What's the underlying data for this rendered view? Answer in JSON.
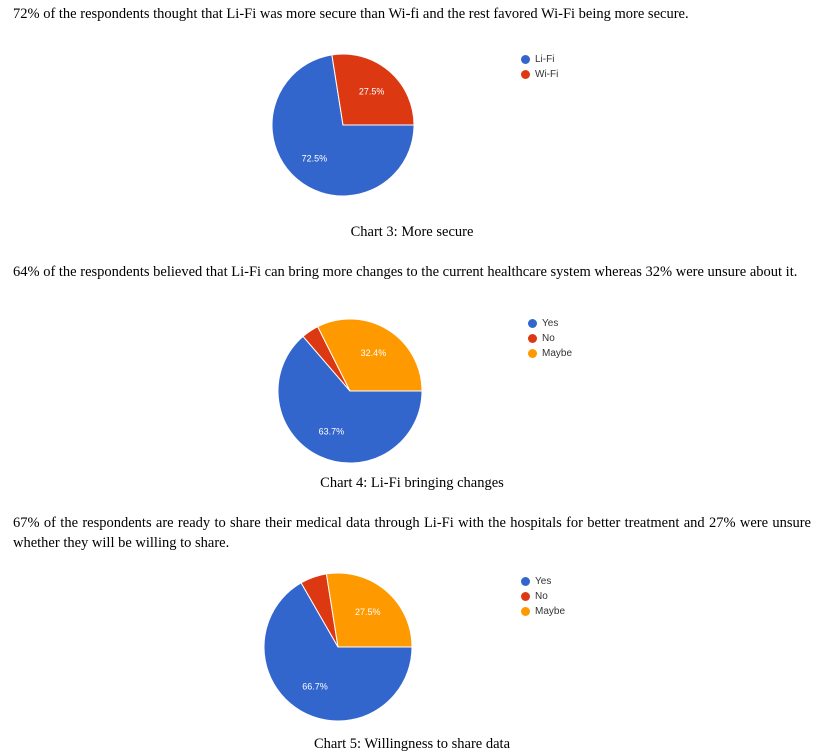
{
  "sections": [
    {
      "paragraph": "72% of the respondents thought that Li-Fi was more secure than Wi-fi and the rest favored Wi-Fi being more secure.",
      "caption": "Chart 3: More secure"
    },
    {
      "paragraph": "64% of the respondents believed that Li-Fi can bring more changes to the current healthcare system whereas 32% were unsure about it.",
      "caption": "Chart 4: Li-Fi bringing changes"
    },
    {
      "paragraph": "67% of the respondents are ready to share their medical data through Li-Fi with the hospitals for better treatment and 27% were unsure whether they will be willing to share.",
      "caption": "Chart 5: Willingness to share data"
    }
  ],
  "chart_data": [
    {
      "type": "pie",
      "title": "",
      "legend_position": "top-right",
      "slices": [
        {
          "label": "Li-Fi",
          "value": 72.5,
          "display": "72.5%",
          "color": "#3366cc"
        },
        {
          "label": "Wi-Fi",
          "value": 27.5,
          "display": "27.5%",
          "color": "#dc3912"
        }
      ]
    },
    {
      "type": "pie",
      "title": "",
      "legend_position": "top-right",
      "slices": [
        {
          "label": "Yes",
          "value": 63.7,
          "display": "63.7%",
          "color": "#3366cc"
        },
        {
          "label": "No",
          "value": 3.9,
          "display": "",
          "color": "#dc3912"
        },
        {
          "label": "Maybe",
          "value": 32.4,
          "display": "32.4%",
          "color": "#ff9900"
        }
      ]
    },
    {
      "type": "pie",
      "title": "",
      "legend_position": "top-right",
      "slices": [
        {
          "label": "Yes",
          "value": 66.7,
          "display": "66.7%",
          "color": "#3366cc"
        },
        {
          "label": "No",
          "value": 5.8,
          "display": "",
          "color": "#dc3912"
        },
        {
          "label": "Maybe",
          "value": 27.5,
          "display": "27.5%",
          "color": "#ff9900"
        }
      ]
    }
  ]
}
